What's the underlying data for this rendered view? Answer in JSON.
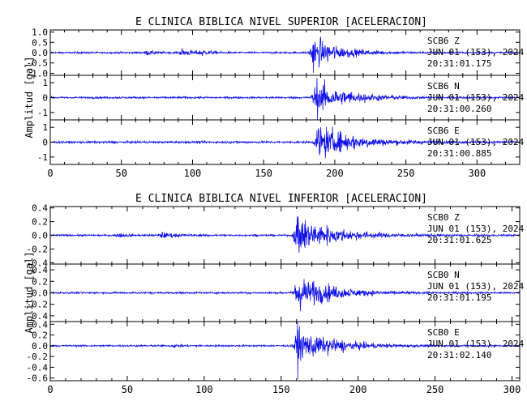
{
  "chart_data": [
    {
      "type": "line",
      "title": "E CLINICA BIBLICA NIVEL SUPERIOR [ACELERACION]",
      "ylabel": "Amplitud [gal]",
      "xlim": [
        0,
        330
      ],
      "x_ticks": [
        "0",
        "50",
        "100",
        "150",
        "200",
        "250",
        "300"
      ],
      "series": [
        {
          "station": "SCB6",
          "component": "Z",
          "date": "JUN 01 (153), 2024",
          "time": "20:31:01.175",
          "ylim": [
            -1.1,
            1.1
          ],
          "y_ticks": [
            "1.0",
            "0.5",
            "0.0",
            "-0.5",
            "-1.0"
          ],
          "noise_amp": 0.04,
          "events": [
            {
              "t": 68,
              "amp": 0.12,
              "dur": 5
            },
            {
              "t": 92,
              "amp": 0.22,
              "dur": 8
            },
            {
              "t": 106,
              "amp": 0.16,
              "dur": 5
            },
            {
              "t": 184,
              "amp": 0.95,
              "dur": 18
            }
          ]
        },
        {
          "station": "SCB6",
          "component": "N",
          "date": "JUN 01 (153), 2024",
          "time": "20:31:00.260",
          "ylim": [
            -1.5,
            1.5
          ],
          "y_ticks": [
            "1",
            "0",
            "-1"
          ],
          "noise_amp": 0.06,
          "events": [
            {
              "t": 186,
              "amp": 1.35,
              "dur": 22
            }
          ]
        },
        {
          "station": "SCB6",
          "component": "E",
          "date": "JUN 01 (153), 2024",
          "time": "20:31:00.885",
          "ylim": [
            -1.5,
            1.5
          ],
          "y_ticks": [
            "1",
            "0",
            "-1"
          ],
          "noise_amp": 0.07,
          "events": [
            {
              "t": 188,
              "amp": 1.3,
              "dur": 26
            }
          ]
        }
      ]
    },
    {
      "type": "line",
      "title": "E CLINICA BIBLICA NIVEL INFERIOR [ACELERACION]",
      "ylabel": "Amplitud [gal]",
      "xlim": [
        0,
        305
      ],
      "x_ticks": [
        "0",
        "50",
        "100",
        "150",
        "200",
        "250",
        "300"
      ],
      "series": [
        {
          "station": "SCB0",
          "component": "Z",
          "date": "JUN 01 (153), 2024",
          "time": "20:31:01.625",
          "ylim": [
            -0.42,
            0.42
          ],
          "y_ticks": [
            "0.4",
            "0.2",
            "0.0",
            "-0.2",
            "-0.4"
          ],
          "noise_amp": 0.012,
          "events": [
            {
              "t": 45,
              "amp": 0.03,
              "dur": 6
            },
            {
              "t": 72,
              "amp": 0.05,
              "dur": 10
            },
            {
              "t": 160,
              "amp": 0.36,
              "dur": 22
            }
          ]
        },
        {
          "station": "SCB0",
          "component": "N",
          "date": "JUN 01 (153), 2024",
          "time": "20:31:01.195",
          "ylim": [
            -0.5,
            0.5
          ],
          "y_ticks": [
            "0.4",
            "0.2",
            "0.0",
            "-0.2",
            "-0.4"
          ],
          "noise_amp": 0.015,
          "events": [
            {
              "t": 160,
              "amp": 0.42,
              "dur": 20
            }
          ]
        },
        {
          "station": "SCB0",
          "component": "E",
          "date": "JUN 01 (153), 2024",
          "time": "20:31:02.140",
          "ylim": [
            -0.65,
            0.45
          ],
          "y_ticks": [
            "0.4",
            "0.2",
            "0.0",
            "-0.2",
            "-0.4",
            "-0.6"
          ],
          "noise_amp": 0.015,
          "events": [
            {
              "t": 80,
              "amp": 0.03,
              "dur": 6
            },
            {
              "t": 160,
              "amp": 0.42,
              "dur": 22
            }
          ]
        }
      ]
    }
  ],
  "colors": {
    "trace": "#1010e6",
    "axes": "#000000",
    "background": "#ffffff"
  }
}
